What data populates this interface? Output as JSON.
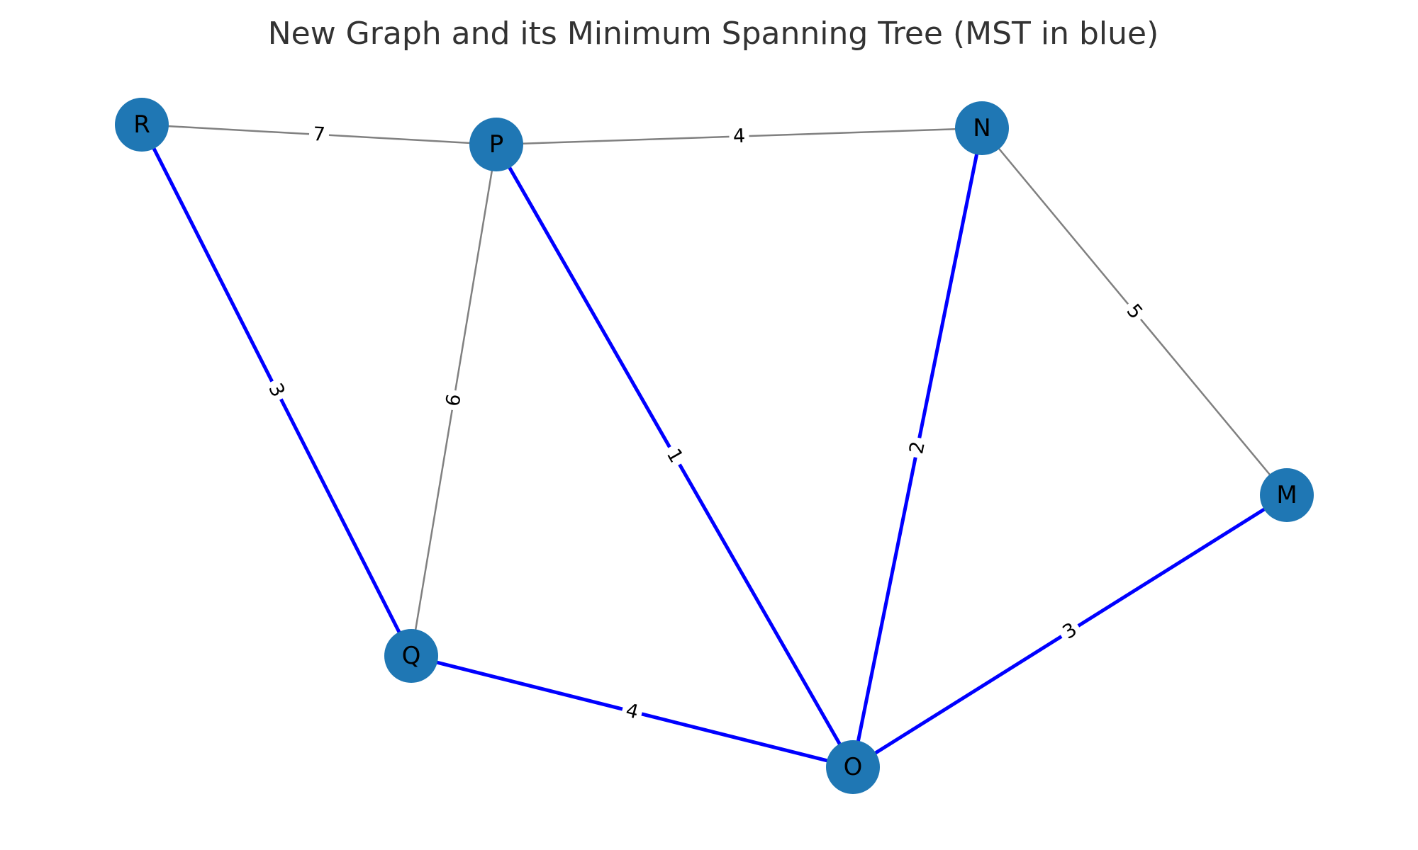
{
  "title": "New Graph and its Minimum Spanning Tree (MST in blue)",
  "colors": {
    "node_fill": "#1f77b4",
    "mst_edge": "#0000ff",
    "other_edge": "#808080",
    "background": "#ffffff"
  },
  "nodes": [
    {
      "id": "R",
      "label": "R"
    },
    {
      "id": "P",
      "label": "P"
    },
    {
      "id": "N",
      "label": "N"
    },
    {
      "id": "M",
      "label": "M"
    },
    {
      "id": "Q",
      "label": "Q"
    },
    {
      "id": "O",
      "label": "O"
    }
  ],
  "edges": [
    {
      "source": "R",
      "target": "P",
      "weight": "7",
      "in_mst": false
    },
    {
      "source": "P",
      "target": "N",
      "weight": "4",
      "in_mst": false
    },
    {
      "source": "P",
      "target": "Q",
      "weight": "6",
      "in_mst": false
    },
    {
      "source": "N",
      "target": "M",
      "weight": "5",
      "in_mst": false
    },
    {
      "source": "R",
      "target": "Q",
      "weight": "3",
      "in_mst": true
    },
    {
      "source": "P",
      "target": "O",
      "weight": "1",
      "in_mst": true
    },
    {
      "source": "N",
      "target": "O",
      "weight": "2",
      "in_mst": true
    },
    {
      "source": "M",
      "target": "O",
      "weight": "3",
      "in_mst": true
    },
    {
      "source": "Q",
      "target": "O",
      "weight": "4",
      "in_mst": true
    }
  ]
}
